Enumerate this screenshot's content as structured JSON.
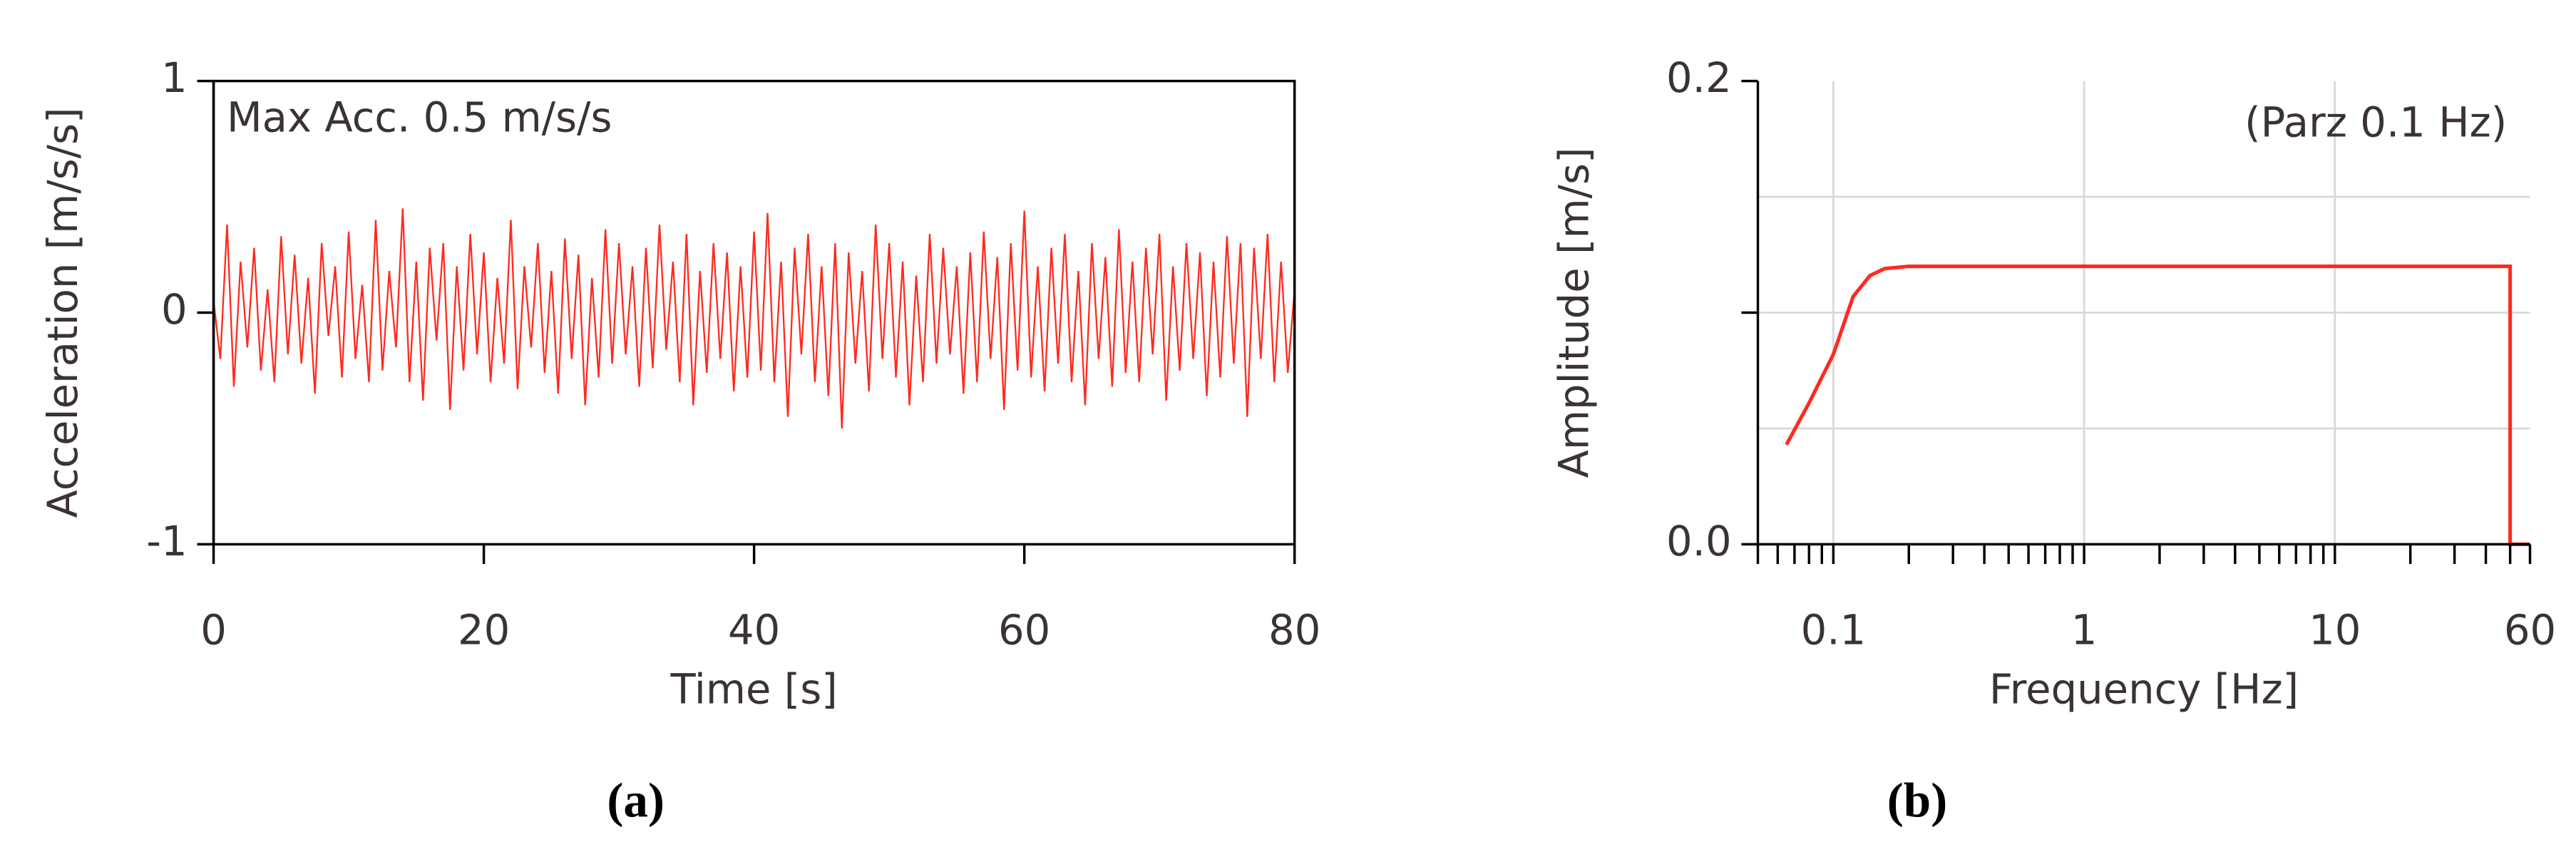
{
  "chart_data": [
    {
      "type": "line",
      "caption": "(a)",
      "xlabel": "Time [s]",
      "ylabel": "Acceleration [m/s/s]",
      "annotation": "Max Acc. 0.5 m/s/s",
      "xlim": [
        0,
        80
      ],
      "ylim": [
        -1,
        1
      ],
      "xticks": [
        0,
        20,
        40,
        60,
        80
      ],
      "yticks": [
        -1,
        0,
        1
      ],
      "xscale": "linear",
      "x": [
        0,
        0.5,
        1,
        1.5,
        2,
        2.5,
        3,
        3.5,
        4,
        4.5,
        5,
        5.5,
        6,
        6.5,
        7,
        7.5,
        8,
        8.5,
        9,
        9.5,
        10,
        10.5,
        11,
        11.5,
        12,
        12.5,
        13,
        13.5,
        14,
        14.5,
        15,
        15.5,
        16,
        16.5,
        17,
        17.5,
        18,
        18.5,
        19,
        19.5,
        20,
        20.5,
        21,
        21.5,
        22,
        22.5,
        23,
        23.5,
        24,
        24.5,
        25,
        25.5,
        26,
        26.5,
        27,
        27.5,
        28,
        28.5,
        29,
        29.5,
        30,
        30.5,
        31,
        31.5,
        32,
        32.5,
        33,
        33.5,
        34,
        34.5,
        35,
        35.5,
        36,
        36.5,
        37,
        37.5,
        38,
        38.5,
        39,
        39.5,
        40,
        40.5,
        41,
        41.5,
        42,
        42.5,
        43,
        43.5,
        44,
        44.5,
        45,
        45.5,
        46,
        46.5,
        47,
        47.5,
        48,
        48.5,
        49,
        49.5,
        50,
        50.5,
        51,
        51.5,
        52,
        52.5,
        53,
        53.5,
        54,
        54.5,
        55,
        55.5,
        56,
        56.5,
        57,
        57.5,
        58,
        58.5,
        59,
        59.5,
        60,
        60.5,
        61,
        61.5,
        62,
        62.5,
        63,
        63.5,
        64,
        64.5,
        65,
        65.5,
        66,
        66.5,
        67,
        67.5,
        68,
        68.5,
        69,
        69.5,
        70,
        70.5,
        71,
        71.5,
        72,
        72.5,
        73,
        73.5,
        74,
        74.5,
        75,
        75.5,
        76,
        76.5,
        77,
        77.5,
        78,
        78.5,
        79,
        79.5,
        80
      ],
      "series": [
        {
          "name": "acceleration",
          "color": "#ff2a1f",
          "values": [
            0.05,
            -0.2,
            0.38,
            -0.32,
            0.22,
            -0.15,
            0.28,
            -0.25,
            0.1,
            -0.3,
            0.33,
            -0.18,
            0.25,
            -0.22,
            0.15,
            -0.35,
            0.3,
            -0.1,
            0.2,
            -0.28,
            0.35,
            -0.2,
            0.12,
            -0.3,
            0.4,
            -0.25,
            0.18,
            -0.15,
            0.45,
            -0.3,
            0.22,
            -0.38,
            0.28,
            -0.12,
            0.3,
            -0.42,
            0.2,
            -0.25,
            0.34,
            -0.18,
            0.26,
            -0.3,
            0.15,
            -0.22,
            0.4,
            -0.33,
            0.2,
            -0.15,
            0.3,
            -0.26,
            0.18,
            -0.35,
            0.32,
            -0.2,
            0.25,
            -0.4,
            0.15,
            -0.28,
            0.36,
            -0.22,
            0.3,
            -0.18,
            0.2,
            -0.32,
            0.28,
            -0.24,
            0.38,
            -0.16,
            0.22,
            -0.3,
            0.34,
            -0.4,
            0.18,
            -0.26,
            0.3,
            -0.2,
            0.26,
            -0.34,
            0.2,
            -0.28,
            0.35,
            -0.25,
            0.43,
            -0.3,
            0.22,
            -0.45,
            0.28,
            -0.18,
            0.34,
            -0.3,
            0.2,
            -0.36,
            0.3,
            -0.5,
            0.26,
            -0.22,
            0.18,
            -0.34,
            0.38,
            -0.2,
            0.3,
            -0.28,
            0.22,
            -0.4,
            0.16,
            -0.3,
            0.34,
            -0.22,
            0.28,
            -0.18,
            0.2,
            -0.35,
            0.26,
            -0.3,
            0.35,
            -0.2,
            0.24,
            -0.42,
            0.3,
            -0.25,
            0.44,
            -0.28,
            0.2,
            -0.34,
            0.28,
            -0.22,
            0.34,
            -0.3,
            0.18,
            -0.4,
            0.3,
            -0.2,
            0.24,
            -0.32,
            0.36,
            -0.26,
            0.22,
            -0.3,
            0.28,
            -0.18,
            0.34,
            -0.38,
            0.2,
            -0.25,
            0.3,
            -0.2,
            0.26,
            -0.36,
            0.22,
            -0.28,
            0.33,
            -0.22,
            0.3,
            -0.45,
            0.28,
            -0.2,
            0.34,
            -0.3,
            0.22,
            -0.26,
            0.1
          ]
        }
      ]
    },
    {
      "type": "line",
      "caption": "(b)",
      "xlabel": "Frequency [Hz]",
      "ylabel": "Amplitude [m/s]",
      "annotation": "(Parz 0.1 Hz)",
      "xlim": [
        0.05,
        60
      ],
      "ylim": [
        0,
        0.2
      ],
      "xscale": "log",
      "xticks": [
        0.1,
        1,
        10,
        60
      ],
      "xminor_ticks": [
        0.05,
        0.06,
        0.07,
        0.08,
        0.09,
        0.2,
        0.3,
        0.4,
        0.5,
        0.6,
        0.7,
        0.8,
        0.9,
        2,
        3,
        4,
        5,
        6,
        7,
        8,
        9,
        20,
        30,
        40,
        50
      ],
      "xgrid": [
        0.1,
        1,
        10
      ],
      "yticks": [
        {
          "value": 0,
          "label": "0.0"
        },
        0.2
      ],
      "yminor_ticks": [
        0.1
      ],
      "ygrid": [
        0.05,
        0.1,
        0.15
      ],
      "x": [
        0.065,
        0.08,
        0.1,
        0.12,
        0.14,
        0.16,
        0.2,
        50,
        50,
        60
      ],
      "series": [
        {
          "name": "amplitude",
          "color": "#ff2a1f",
          "values": [
            0.043,
            0.061,
            0.082,
            0.107,
            0.116,
            0.119,
            0.12,
            0.12,
            0,
            0
          ]
        }
      ]
    }
  ]
}
